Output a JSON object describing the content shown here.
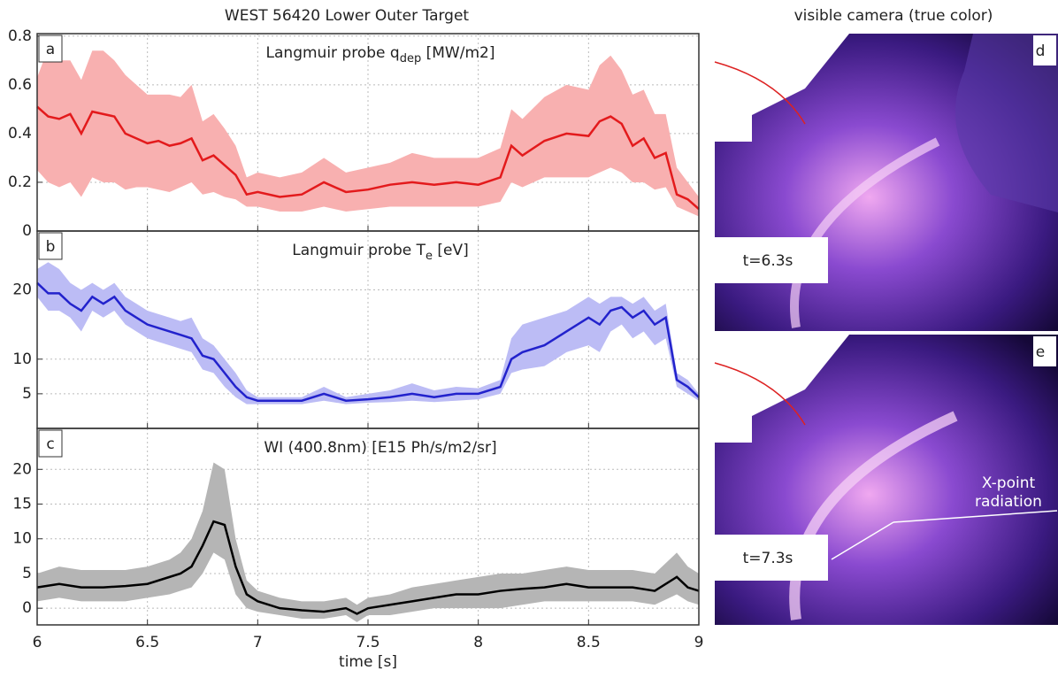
{
  "figure_title": "WEST 56420  Lower Outer Target",
  "camera": {
    "title": "visible camera (true color)",
    "panels": [
      {
        "label": "d",
        "time": "t=6.3s"
      },
      {
        "label": "e",
        "time": "t=7.3s",
        "annotation": "X-point radiation"
      }
    ]
  },
  "chart_data": [
    {
      "type": "band-line",
      "panel": "a",
      "title": "Langmuir probe q",
      "title_sub": "dep",
      "title_unit": " [MW/m2]",
      "color": "#e31a1c",
      "band_color": "#f8b0b0",
      "x": [
        6.0,
        6.05,
        6.1,
        6.15,
        6.2,
        6.25,
        6.3,
        6.35,
        6.4,
        6.45,
        6.5,
        6.55,
        6.6,
        6.65,
        6.7,
        6.75,
        6.8,
        6.85,
        6.9,
        6.95,
        7.0,
        7.1,
        7.2,
        7.3,
        7.4,
        7.5,
        7.6,
        7.7,
        7.8,
        7.9,
        8.0,
        8.1,
        8.15,
        8.2,
        8.3,
        8.4,
        8.5,
        8.55,
        8.6,
        8.65,
        8.7,
        8.75,
        8.8,
        8.85,
        8.9,
        8.95,
        9.0
      ],
      "values": [
        0.51,
        0.47,
        0.46,
        0.48,
        0.4,
        0.49,
        0.48,
        0.47,
        0.4,
        0.38,
        0.36,
        0.37,
        0.35,
        0.36,
        0.38,
        0.29,
        0.31,
        0.27,
        0.23,
        0.15,
        0.16,
        0.14,
        0.15,
        0.2,
        0.16,
        0.17,
        0.19,
        0.2,
        0.19,
        0.2,
        0.19,
        0.22,
        0.35,
        0.31,
        0.37,
        0.4,
        0.39,
        0.45,
        0.47,
        0.44,
        0.35,
        0.38,
        0.3,
        0.32,
        0.15,
        0.13,
        0.09
      ],
      "lower": [
        0.25,
        0.2,
        0.18,
        0.2,
        0.14,
        0.22,
        0.2,
        0.2,
        0.17,
        0.18,
        0.18,
        0.17,
        0.16,
        0.18,
        0.2,
        0.15,
        0.16,
        0.14,
        0.13,
        0.1,
        0.1,
        0.08,
        0.08,
        0.1,
        0.08,
        0.09,
        0.1,
        0.1,
        0.1,
        0.1,
        0.1,
        0.12,
        0.2,
        0.18,
        0.22,
        0.22,
        0.22,
        0.24,
        0.26,
        0.24,
        0.2,
        0.2,
        0.17,
        0.18,
        0.1,
        0.08,
        0.06
      ],
      "upper": [
        0.63,
        0.75,
        0.7,
        0.7,
        0.62,
        0.74,
        0.74,
        0.7,
        0.64,
        0.6,
        0.56,
        0.56,
        0.56,
        0.55,
        0.6,
        0.45,
        0.48,
        0.42,
        0.35,
        0.22,
        0.24,
        0.22,
        0.24,
        0.3,
        0.24,
        0.26,
        0.28,
        0.32,
        0.3,
        0.3,
        0.3,
        0.34,
        0.5,
        0.46,
        0.55,
        0.6,
        0.58,
        0.68,
        0.72,
        0.66,
        0.56,
        0.58,
        0.48,
        0.48,
        0.26,
        0.2,
        0.14
      ],
      "xlim": [
        6,
        9
      ],
      "xticks": [
        6,
        6.5,
        7,
        7.5,
        8,
        8.5,
        9
      ],
      "xticklabels": false,
      "ylim": [
        0,
        0.81
      ],
      "yticks": [
        0,
        0.2,
        0.4,
        0.6,
        0.8
      ],
      "grid": true
    },
    {
      "type": "band-line",
      "panel": "b",
      "title": "Langmuir probe T",
      "title_sub": "e",
      "title_unit": " [eV]",
      "color": "#2222cc",
      "band_color": "#bcbcf5",
      "x": [
        6.0,
        6.05,
        6.1,
        6.15,
        6.2,
        6.25,
        6.3,
        6.35,
        6.4,
        6.45,
        6.5,
        6.55,
        6.6,
        6.65,
        6.7,
        6.75,
        6.8,
        6.85,
        6.9,
        6.95,
        7.0,
        7.1,
        7.2,
        7.3,
        7.4,
        7.5,
        7.6,
        7.7,
        7.8,
        7.9,
        8.0,
        8.1,
        8.15,
        8.2,
        8.3,
        8.4,
        8.5,
        8.55,
        8.6,
        8.65,
        8.7,
        8.75,
        8.8,
        8.85,
        8.9,
        8.95,
        9.0
      ],
      "values": [
        21,
        19.5,
        19.5,
        18,
        17,
        19,
        18,
        19,
        17,
        16,
        15,
        14.5,
        14,
        13.5,
        13,
        10.5,
        10,
        8,
        6,
        4.5,
        4,
        4,
        4,
        5,
        4,
        4.2,
        4.5,
        5,
        4.5,
        5,
        5,
        6,
        10,
        11,
        12,
        14,
        16,
        15,
        17,
        17.5,
        16,
        17,
        15,
        16,
        7,
        6,
        4.5
      ],
      "lower": [
        19,
        17,
        17,
        16,
        14,
        17,
        16,
        17,
        15,
        14,
        13,
        12.5,
        12,
        11.5,
        11,
        8.5,
        8,
        6,
        4.5,
        3.5,
        3.5,
        3.5,
        3.5,
        4,
        3.5,
        3.7,
        3.8,
        4,
        3.8,
        4,
        4.2,
        5,
        8,
        8.5,
        9,
        11,
        12,
        11,
        14,
        15,
        13,
        14,
        12,
        13,
        6,
        5,
        4
      ],
      "upper": [
        23,
        24,
        23,
        21,
        20,
        21,
        20,
        21,
        19,
        18,
        17,
        16.5,
        16,
        15.5,
        16,
        13,
        12,
        10,
        8,
        5.5,
        4.5,
        4.5,
        4.5,
        6,
        4.5,
        5,
        5.5,
        6.5,
        5.5,
        6,
        5.8,
        7,
        13,
        15,
        16,
        17,
        19,
        18,
        19,
        19,
        18,
        19,
        17,
        18,
        8,
        7,
        5
      ],
      "xlim": [
        6,
        9
      ],
      "xticks": [
        6,
        6.5,
        7,
        7.5,
        8,
        8.5,
        9
      ],
      "xticklabels": false,
      "ylim": [
        0,
        28.5
      ],
      "yticks": [
        5,
        10,
        20
      ],
      "grid": true
    },
    {
      "type": "band-line",
      "panel": "c",
      "title": "WI (400.8nm) [E15 Ph/s/m2/sr]",
      "color": "#000000",
      "band_color": "#b5b5b5",
      "x": [
        6.0,
        6.1,
        6.2,
        6.3,
        6.4,
        6.5,
        6.6,
        6.65,
        6.7,
        6.75,
        6.8,
        6.85,
        6.9,
        6.95,
        7.0,
        7.1,
        7.2,
        7.3,
        7.4,
        7.45,
        7.5,
        7.6,
        7.7,
        7.8,
        7.9,
        8.0,
        8.1,
        8.2,
        8.3,
        8.4,
        8.5,
        8.6,
        8.7,
        8.8,
        8.9,
        8.95,
        9.0
      ],
      "values": [
        3,
        3.5,
        3,
        3,
        3.2,
        3.5,
        4.5,
        5,
        6,
        9,
        12.5,
        12,
        6,
        2,
        1,
        0,
        -0.3,
        -0.5,
        0,
        -0.8,
        0,
        0.5,
        1,
        1.5,
        2,
        2,
        2.5,
        2.8,
        3,
        3.5,
        3,
        3,
        3,
        2.5,
        4.5,
        3,
        2.5
      ],
      "lower": [
        1,
        1.5,
        1,
        1,
        1,
        1.5,
        2,
        2.5,
        3,
        5,
        8,
        7,
        2,
        0,
        -0.5,
        -1,
        -1.5,
        -1.5,
        -1,
        -2,
        -1,
        -1,
        -0.5,
        0,
        0,
        0,
        0,
        0.5,
        1,
        1,
        1,
        1,
        1,
        0.5,
        2,
        1,
        0.5
      ],
      "upper": [
        5,
        6,
        5.5,
        5.5,
        5.5,
        6,
        7,
        8,
        10,
        14,
        21,
        20,
        10,
        4,
        2.5,
        1.5,
        1,
        1,
        1.5,
        0.5,
        1.5,
        2,
        3,
        3.5,
        4,
        4.5,
        5,
        5,
        5.5,
        6,
        5.5,
        5.5,
        5.5,
        5,
        8,
        6,
        5
      ],
      "xlim": [
        6,
        9
      ],
      "xticks": [
        6,
        6.5,
        7,
        7.5,
        8,
        8.5,
        9
      ],
      "xticklabels": true,
      "xlabel": "time [s]",
      "ylim": [
        -2.4,
        25.9
      ],
      "yticks": [
        0,
        5,
        10,
        15,
        20
      ],
      "grid": true
    }
  ]
}
